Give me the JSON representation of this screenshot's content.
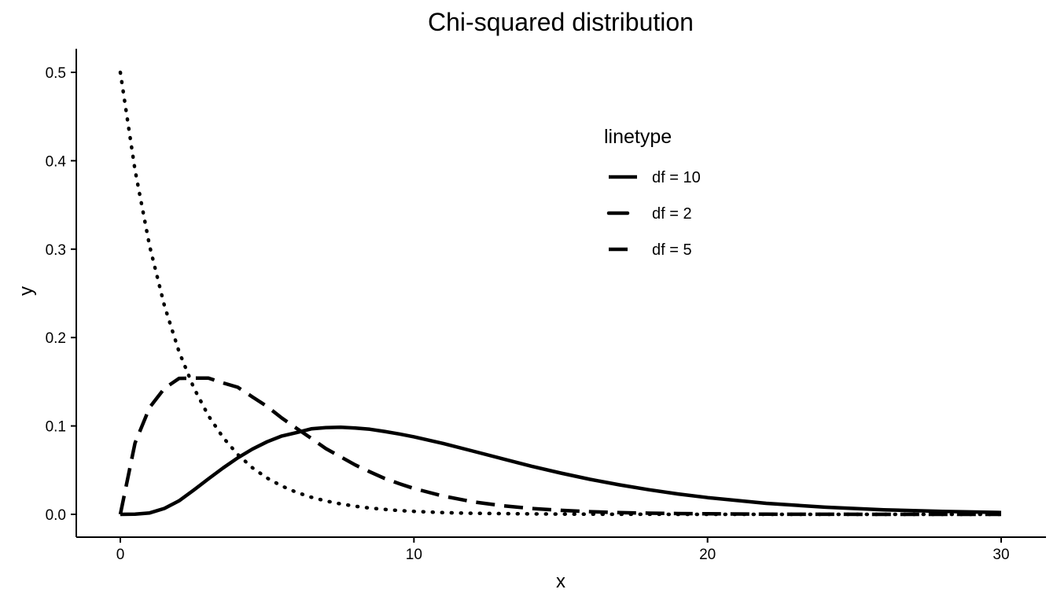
{
  "chart_data": {
    "type": "line",
    "title": "Chi-squared distribution",
    "xlabel": "x",
    "ylabel": "y",
    "xlim": [
      0,
      30
    ],
    "ylim": [
      0,
      0.5
    ],
    "x_ticks": [
      0,
      10,
      20,
      30
    ],
    "y_ticks": [
      0.0,
      0.1,
      0.2,
      0.3,
      0.4,
      0.5
    ],
    "x_tick_labels": [
      "0",
      "10",
      "20",
      "30"
    ],
    "y_tick_labels": [
      "0.0",
      "0.1",
      "0.2",
      "0.3",
      "0.4",
      "0.5"
    ],
    "grid": false,
    "legend": {
      "title": "linetype",
      "position": "inside-top-right",
      "entries": [
        "df = 10",
        "df = 2",
        "df = 5"
      ]
    },
    "x": [
      0,
      0.5,
      1,
      1.5,
      2,
      2.5,
      3,
      3.5,
      4,
      4.5,
      5,
      5.5,
      6,
      6.5,
      7,
      7.5,
      8,
      8.5,
      9,
      9.5,
      10,
      11,
      12,
      13,
      14,
      15,
      16,
      17,
      18,
      19,
      20,
      22,
      24,
      26,
      28,
      30
    ],
    "series": [
      {
        "name": "df = 10",
        "linestyle": "solid",
        "values": [
          0,
          0.00016,
          0.00158,
          0.00666,
          0.01533,
          0.02744,
          0.04016,
          0.05251,
          0.06392,
          0.07386,
          0.08209,
          0.0886,
          0.09241,
          0.09671,
          0.0981,
          0.09862,
          0.09768,
          0.09622,
          0.09377,
          0.09089,
          0.08773,
          0.08012,
          0.07165,
          0.06299,
          0.05447,
          0.0467,
          0.03963,
          0.03339,
          0.02785,
          0.02306,
          0.01892,
          0.01247,
          0.00806,
          0.00516,
          0.00325,
          0.00202
        ]
      },
      {
        "name": "df = 2",
        "linestyle": "dotted",
        "values": [
          0.5,
          0.3894,
          0.3033,
          0.2362,
          0.1839,
          0.1433,
          0.1116,
          0.0869,
          0.0677,
          0.0527,
          0.041,
          0.032,
          0.0249,
          0.0194,
          0.0151,
          0.0118,
          0.0092,
          0.0071,
          0.0056,
          0.0043,
          0.0034,
          0.002,
          0.0012,
          0.0008,
          0.0005,
          0.0003,
          0.0002,
          0.0001,
          0.0001,
          0.0,
          0.0,
          0.0,
          0.0,
          0.0,
          0.0,
          0.0
        ]
      },
      {
        "name": "df = 5",
        "linestyle": "dashed",
        "values": [
          0,
          0.0807,
          0.121,
          0.1424,
          0.1538,
          0.1541,
          0.1542,
          0.1487,
          0.1438,
          0.1328,
          0.122,
          0.109,
          0.0973,
          0.086,
          0.0744,
          0.0651,
          0.0559,
          0.0481,
          0.0407,
          0.0347,
          0.0293,
          0.0206,
          0.0142,
          0.0098,
          0.0067,
          0.0045,
          0.003,
          0.002,
          0.0013,
          0.0009,
          0.0006,
          0.0002,
          0.0001,
          0.0,
          0.0,
          0.0
        ]
      }
    ]
  }
}
